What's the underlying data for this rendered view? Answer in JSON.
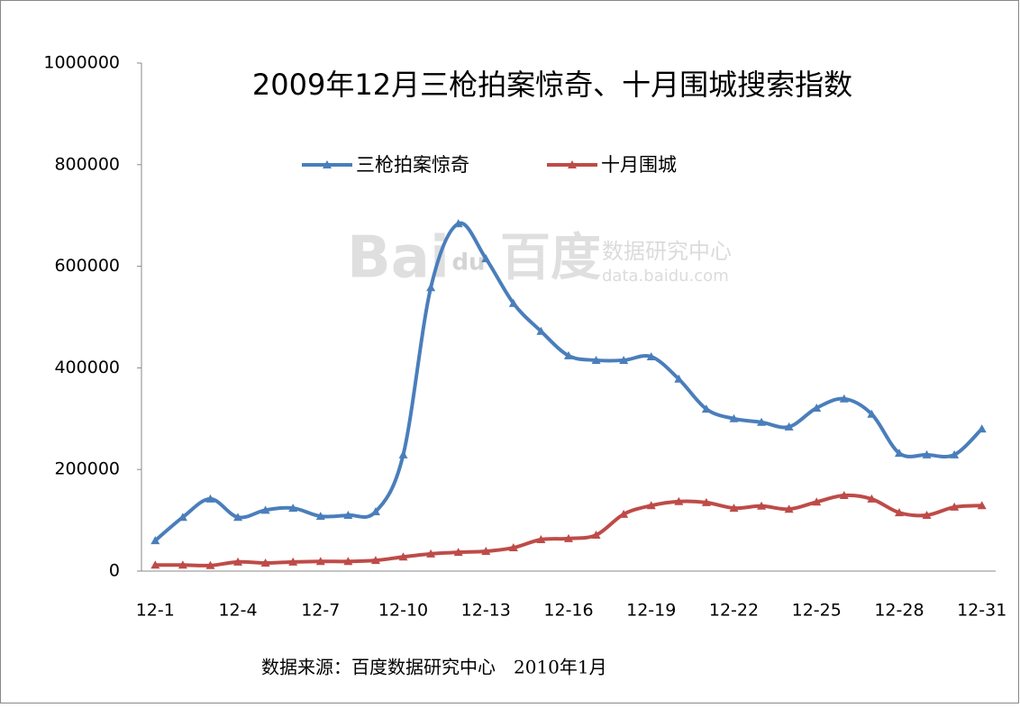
{
  "chart_data": {
    "type": "line",
    "title": "2009年12月三枪拍案惊奇、十月围城搜索指数",
    "source": "数据来源：百度数据研究中心　2010年1月",
    "watermark": [
      "Bai",
      "du",
      "百度",
      "数据研究中心",
      "data.baidu.com"
    ],
    "categories": [
      "12-1",
      null,
      null,
      "12-4",
      null,
      null,
      "12-7",
      null,
      null,
      "12-10",
      null,
      null,
      "12-13",
      null,
      null,
      "12-16",
      null,
      null,
      "12-19",
      null,
      null,
      "12-22",
      null,
      null,
      "12-25",
      null,
      null,
      "12-28",
      null,
      null,
      "12-31"
    ],
    "series": [
      {
        "name": "三枪拍案惊奇",
        "color": "#4a7ebb",
        "values": [
          60000,
          106000,
          142000,
          106000,
          120000,
          124000,
          108000,
          110000,
          117000,
          229000,
          558000,
          684000,
          615000,
          527000,
          472000,
          424000,
          415000,
          415000,
          422000,
          378000,
          319000,
          300000,
          293000,
          284000,
          321000,
          339000,
          309000,
          232000,
          229000,
          229000,
          280000
        ]
      },
      {
        "name": "十月围城",
        "color": "#be4b48",
        "values": [
          12000,
          12000,
          11000,
          18000,
          16000,
          18000,
          19000,
          19000,
          21000,
          28000,
          34000,
          37000,
          39000,
          46000,
          62000,
          64000,
          71000,
          112000,
          129000,
          137000,
          135000,
          124000,
          128000,
          122000,
          136000,
          149000,
          142000,
          115000,
          110000,
          126000,
          129000
        ]
      }
    ],
    "ylim": [
      0,
      1000000
    ],
    "yticks": [
      0,
      200000,
      400000,
      600000,
      800000,
      1000000
    ],
    "grid": false,
    "smooth": true,
    "marker": "triangle"
  }
}
